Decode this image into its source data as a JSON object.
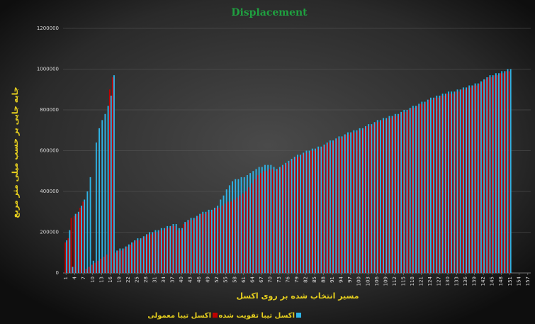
{
  "chart_data": {
    "type": "bar",
    "title": "Displacement",
    "x_label": "مسیر انتخاب شده بر روی اکسل",
    "y_label": "جابه جایی بر حسب میلی متر مربع",
    "xlim": [
      0,
      158
    ],
    "xticks": [
      1,
      4,
      7,
      10,
      13,
      16,
      19,
      22,
      25,
      28,
      31,
      34,
      37,
      40,
      43,
      46,
      49,
      52,
      55,
      58,
      61,
      64,
      67,
      70,
      73,
      76,
      79,
      82,
      85,
      88,
      91,
      94,
      97,
      100,
      103,
      106,
      109,
      112,
      115,
      118,
      121,
      124,
      127,
      130,
      133,
      136,
      139,
      142,
      145,
      148,
      151,
      154,
      157
    ],
    "ylim": [
      0,
      1200000
    ],
    "yticks": [
      0,
      200000,
      400000,
      600000,
      800000,
      1000000,
      1200000
    ],
    "grid": true,
    "legend": "bottom",
    "x": [
      1,
      2,
      3,
      4,
      5,
      6,
      7,
      8,
      9,
      10,
      11,
      12,
      13,
      14,
      15,
      16,
      17,
      18,
      19,
      20,
      21,
      22,
      23,
      24,
      25,
      26,
      27,
      28,
      29,
      30,
      31,
      32,
      33,
      34,
      35,
      36,
      37,
      38,
      39,
      40,
      41,
      42,
      43,
      44,
      45,
      46,
      47,
      48,
      49,
      50,
      51,
      52,
      53,
      54,
      55,
      56,
      57,
      58,
      59,
      60,
      61,
      62,
      63,
      64,
      65,
      66,
      67,
      68,
      69,
      70,
      71,
      72,
      73,
      74,
      75,
      76,
      77,
      78,
      79,
      80,
      81,
      82,
      83,
      84,
      85,
      86,
      87,
      88,
      89,
      90,
      91,
      92,
      93,
      94,
      95,
      96,
      97,
      98,
      99,
      100,
      101,
      102,
      103,
      104,
      105,
      106,
      107,
      108,
      109,
      110,
      111,
      112,
      113,
      114,
      115,
      116,
      117,
      118,
      119,
      120,
      121,
      122,
      123,
      124,
      125,
      126,
      127,
      128,
      129,
      130,
      131,
      132,
      133,
      134,
      135,
      136,
      137,
      138,
      139,
      140,
      141,
      142,
      143,
      144,
      145,
      146,
      147,
      148,
      149,
      150,
      151
    ],
    "series": [
      {
        "name": "اکسل تیبا معمولی",
        "color": "#c00000",
        "values": [
          150000,
          170000,
          270000,
          280000,
          290000,
          320000,
          350000,
          20000,
          30000,
          40000,
          50000,
          60000,
          70000,
          80000,
          90000,
          900000,
          960000,
          100000,
          110000,
          110000,
          120000,
          130000,
          140000,
          150000,
          160000,
          160000,
          170000,
          180000,
          190000,
          190000,
          200000,
          200000,
          210000,
          210000,
          220000,
          220000,
          230000,
          230000,
          210000,
          210000,
          240000,
          250000,
          260000,
          260000,
          270000,
          280000,
          290000,
          290000,
          300000,
          300000,
          310000,
          320000,
          320000,
          330000,
          340000,
          350000,
          350000,
          360000,
          370000,
          380000,
          390000,
          400000,
          420000,
          440000,
          460000,
          480000,
          490000,
          500000,
          500000,
          510000,
          510000,
          500000,
          510000,
          520000,
          530000,
          540000,
          550000,
          560000,
          570000,
          570000,
          580000,
          590000,
          590000,
          600000,
          600000,
          610000,
          610000,
          620000,
          630000,
          640000,
          640000,
          650000,
          660000,
          660000,
          670000,
          680000,
          680000,
          690000,
          690000,
          700000,
          700000,
          710000,
          720000,
          720000,
          730000,
          740000,
          740000,
          750000,
          750000,
          760000,
          760000,
          770000,
          770000,
          780000,
          790000,
          790000,
          800000,
          810000,
          810000,
          820000,
          830000,
          830000,
          840000,
          850000,
          850000,
          860000,
          860000,
          870000,
          870000,
          880000,
          880000,
          880000,
          890000,
          890000,
          900000,
          900000,
          910000,
          910000,
          920000,
          920000,
          930000,
          940000,
          950000,
          960000,
          960000,
          970000,
          970000,
          980000,
          980000,
          990000,
          990000
        ]
      },
      {
        "name": "اکسل تیبا تقویت شده",
        "color": "#2fb4e6",
        "values": [
          160000,
          210000,
          30000,
          290000,
          300000,
          330000,
          360000,
          400000,
          470000,
          60000,
          640000,
          710000,
          750000,
          780000,
          820000,
          870000,
          970000,
          110000,
          120000,
          120000,
          130000,
          140000,
          150000,
          160000,
          170000,
          170000,
          180000,
          190000,
          200000,
          200000,
          210000,
          210000,
          220000,
          220000,
          230000,
          230000,
          240000,
          240000,
          220000,
          220000,
          250000,
          260000,
          270000,
          270000,
          280000,
          290000,
          300000,
          300000,
          310000,
          310000,
          320000,
          330000,
          360000,
          380000,
          410000,
          430000,
          450000,
          460000,
          460000,
          470000,
          470000,
          480000,
          490000,
          500000,
          510000,
          520000,
          520000,
          530000,
          530000,
          530000,
          520000,
          510000,
          520000,
          530000,
          540000,
          550000,
          560000,
          570000,
          580000,
          580000,
          590000,
          600000,
          600000,
          610000,
          610000,
          620000,
          620000,
          630000,
          640000,
          650000,
          650000,
          660000,
          670000,
          670000,
          680000,
          690000,
          690000,
          700000,
          700000,
          710000,
          710000,
          720000,
          730000,
          730000,
          740000,
          750000,
          750000,
          760000,
          760000,
          770000,
          770000,
          780000,
          780000,
          790000,
          800000,
          800000,
          810000,
          820000,
          820000,
          830000,
          840000,
          840000,
          850000,
          860000,
          860000,
          870000,
          870000,
          880000,
          880000,
          890000,
          890000,
          890000,
          900000,
          900000,
          910000,
          910000,
          920000,
          920000,
          930000,
          930000,
          940000,
          950000,
          960000,
          970000,
          970000,
          980000,
          980000,
          990000,
          990000,
          1000000,
          1000000
        ]
      }
    ]
  }
}
